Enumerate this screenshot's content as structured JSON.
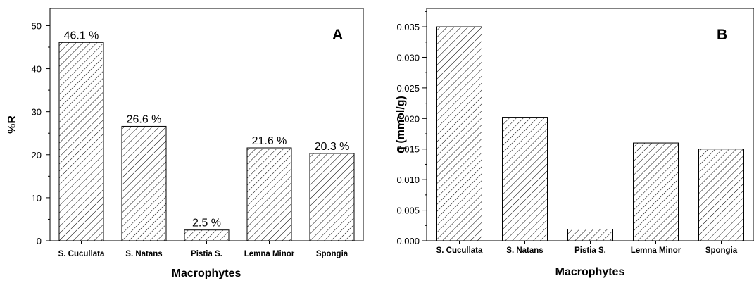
{
  "figure": {
    "chart_data": [
      {
        "type": "bar",
        "panel": "A",
        "title": "",
        "categories": [
          "S. Cucullata",
          "S. Natans",
          "Pistia S.",
          "Lemna Minor",
          "Spongia"
        ],
        "values": [
          46.1,
          26.6,
          2.5,
          21.6,
          20.3
        ],
        "data_labels": [
          "46.1 %",
          "26.6 %",
          "2.5 %",
          "21.6 %",
          "20.3 %"
        ],
        "xlabel": "Macrophytes",
        "ylabel": "%R",
        "ylim": [
          0,
          54
        ],
        "yticks": [
          0,
          10,
          20,
          30,
          40,
          50
        ],
        "ytick_labels": [
          "0",
          "10",
          "20",
          "30",
          "40",
          "50"
        ],
        "grid": false,
        "bar_fill": "diagonal-hatch",
        "bar_color": "#000000"
      },
      {
        "type": "bar",
        "panel": "B",
        "title": "",
        "categories": [
          "S. Cucullata",
          "S. Natans",
          "Pistia S.",
          "Lemna Minor",
          "Spongia"
        ],
        "values": [
          0.035,
          0.0202,
          0.0019,
          0.016,
          0.015
        ],
        "xlabel": "Macrophytes",
        "ylabel": "q (mmol/g)",
        "ylim": [
          0,
          0.038
        ],
        "yticks": [
          0,
          0.005,
          0.01,
          0.015,
          0.02,
          0.025,
          0.03,
          0.035
        ],
        "ytick_labels": [
          "0.000",
          "0.005",
          "0.010",
          "0.015",
          "0.020",
          "0.025",
          "0.030",
          "0.035"
        ],
        "grid": false,
        "bar_fill": "diagonal-hatch",
        "bar_color": "#000000"
      }
    ]
  }
}
